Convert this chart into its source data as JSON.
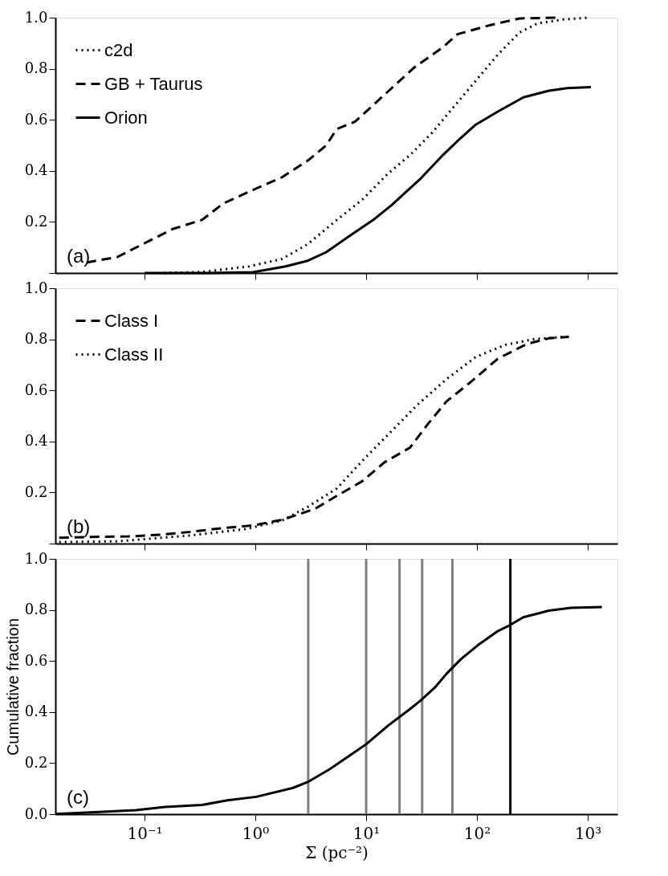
{
  "chart_data": [
    {
      "type": "line",
      "annotations": [
        "(a)"
      ],
      "legend": "top left",
      "log": "x",
      "tick_labels": "y",
      "xlim": [
        0.0157,
        1850
      ],
      "ylim": [
        0,
        1
      ],
      "xticks": [
        {
          "value": 0.1,
          "label": null
        },
        {
          "value": 1,
          "label": null
        },
        {
          "value": 10,
          "label": null
        },
        {
          "value": 100,
          "label": null
        },
        {
          "value": 1000,
          "label": null
        }
      ],
      "yticks": [
        {
          "value": 0,
          "label": null
        },
        {
          "value": 0.2,
          "label": "0.2"
        },
        {
          "value": 0.4,
          "label": "0.4"
        },
        {
          "value": 0.6,
          "label": "0.6"
        },
        {
          "value": 0.8,
          "label": "0.8"
        },
        {
          "value": 1,
          "label": "1.0"
        }
      ],
      "series": [
        {
          "name": "c2d",
          "color": "#000000",
          "line_style": "dotted",
          "x": [
            0.15,
            0.33,
            0.88,
            1.74,
            2.97,
            5.44,
            9.27,
            15.8,
            24.9,
            39.3,
            61.8,
            97.5,
            154,
            242,
            354,
            602,
            1026
          ],
          "values": [
            0,
            0.004,
            0.026,
            0.055,
            0.113,
            0.208,
            0.288,
            0.39,
            0.462,
            0.549,
            0.651,
            0.753,
            0.855,
            0.942,
            0.978,
            0.993,
            1.0
          ]
        },
        {
          "name": "GB + Taurus",
          "color": "#000000",
          "line_style": "dashed",
          "x": [
            0.03,
            0.057,
            0.105,
            0.179,
            0.33,
            0.517,
            1.02,
            1.74,
            2.97,
            4.34,
            5.44,
            7.96,
            11.6,
            17.0,
            27.0,
            49.3,
            66.7,
            132,
            242,
            519
          ],
          "values": [
            0.041,
            0.063,
            0.121,
            0.172,
            0.208,
            0.273,
            0.331,
            0.375,
            0.44,
            0.499,
            0.564,
            0.593,
            0.658,
            0.724,
            0.804,
            0.884,
            0.935,
            0.971,
            0.997,
            1.0
          ]
        },
        {
          "name": "Orion",
          "color": "#000000",
          "line_style": "solid",
          "x": [
            0.1,
            0.38,
            0.95,
            1.88,
            2.97,
            4.34,
            6.8,
            11.6,
            17.0,
            31.2,
            49.3,
            66.7,
            97.5,
            154,
            262,
            445,
            651,
            1067
          ],
          "values": [
            0,
            0,
            0.003,
            0.026,
            0.048,
            0.081,
            0.14,
            0.208,
            0.266,
            0.371,
            0.462,
            0.517,
            0.581,
            0.632,
            0.688,
            0.714,
            0.724,
            0.728
          ]
        }
      ]
    },
    {
      "type": "line",
      "annotations": [
        "(b)"
      ],
      "legend": "top left",
      "log": "x",
      "tick_labels": "y",
      "xlim": [
        0.0157,
        1850
      ],
      "ylim": [
        0,
        1
      ],
      "xticks": [
        {
          "value": 0.1,
          "label": null
        },
        {
          "value": 1,
          "label": null
        },
        {
          "value": 10,
          "label": null
        },
        {
          "value": 100,
          "label": null
        },
        {
          "value": 1000,
          "label": null
        }
      ],
      "yticks": [
        {
          "value": 0,
          "label": null
        },
        {
          "value": 0.2,
          "label": "0.2"
        },
        {
          "value": 0.4,
          "label": "0.4"
        },
        {
          "value": 0.6,
          "label": "0.6"
        },
        {
          "value": 0.8,
          "label": "0.8"
        },
        {
          "value": 1,
          "label": "1.0"
        }
      ],
      "series": [
        {
          "name": "Class I",
          "color": "#000000",
          "line_style": "dashed",
          "x": [
            0.017,
            0.0336,
            0.0718,
            0.142,
            0.261,
            0.517,
            0.95,
            1.74,
            3.45,
            5.44,
            9.27,
            14.6,
            24.9,
            36.3,
            53.1,
            90.3,
            154,
            283,
            445,
            676
          ],
          "values": [
            0.023,
            0.026,
            0.028,
            0.035,
            0.046,
            0.061,
            0.071,
            0.093,
            0.136,
            0.187,
            0.245,
            0.318,
            0.376,
            0.47,
            0.557,
            0.637,
            0.724,
            0.782,
            0.804,
            0.81
          ]
        },
        {
          "name": "Class II",
          "color": "#000000",
          "line_style": "dotted",
          "x": [
            0.017,
            0.057,
            0.261,
            0.815,
            1.74,
            2.97,
            5.44,
            9.27,
            17.0,
            28.9,
            53.1,
            97.5,
            179,
            329,
            651
          ],
          "values": [
            0.006,
            0.009,
            0.032,
            0.057,
            0.09,
            0.144,
            0.216,
            0.325,
            0.441,
            0.543,
            0.644,
            0.731,
            0.778,
            0.801,
            0.81
          ]
        }
      ]
    },
    {
      "type": "line",
      "annotations": [
        "(c)"
      ],
      "log": "x",
      "xlabel": "Σ (pc⁻²)",
      "ylabel": "Cumulative fraction",
      "xlim": [
        0.0157,
        1850
      ],
      "ylim": [
        0,
        1
      ],
      "xticks": [
        {
          "value": 0.1,
          "label": "10⁻¹"
        },
        {
          "value": 1,
          "label": "10⁰"
        },
        {
          "value": 10,
          "label": "10¹"
        },
        {
          "value": 100,
          "label": "10²"
        },
        {
          "value": 1000,
          "label": "10³"
        }
      ],
      "yticks": [
        {
          "value": 0,
          "label": "0.0"
        },
        {
          "value": 0.2,
          "label": "0.2"
        },
        {
          "value": 0.4,
          "label": "0.4"
        },
        {
          "value": 0.6,
          "label": "0.6"
        },
        {
          "value": 0.8,
          "label": "0.8"
        },
        {
          "value": 1,
          "label": "1.0"
        }
      ],
      "ref_lines": [
        {
          "axis": "x",
          "value": 3,
          "color": "#808080"
        },
        {
          "axis": "x",
          "value": 10,
          "color": "#808080"
        },
        {
          "axis": "x",
          "value": 20,
          "color": "#808080"
        },
        {
          "axis": "x",
          "value": 32,
          "color": "#808080"
        },
        {
          "axis": "x",
          "value": 60,
          "color": "#808080"
        },
        {
          "axis": "x",
          "value": 200,
          "color": "#000000"
        }
      ],
      "series": [
        {
          "color": "#000000",
          "line_style": "solid",
          "x": [
            0.0157,
            0.039,
            0.0836,
            0.153,
            0.33,
            0.557,
            1.02,
            2.19,
            2.97,
            4.68,
            6.8,
            10.0,
            15.8,
            24.9,
            31.2,
            42.3,
            53.1,
            72,
            105,
            154,
            190,
            262,
            445,
            703,
            1340
          ],
          "values": [
            0.001,
            0.009,
            0.016,
            0.028,
            0.036,
            0.054,
            0.068,
            0.103,
            0.126,
            0.176,
            0.224,
            0.274,
            0.347,
            0.412,
            0.446,
            0.499,
            0.55,
            0.608,
            0.666,
            0.717,
            0.736,
            0.771,
            0.797,
            0.808,
            0.811
          ]
        }
      ]
    }
  ]
}
